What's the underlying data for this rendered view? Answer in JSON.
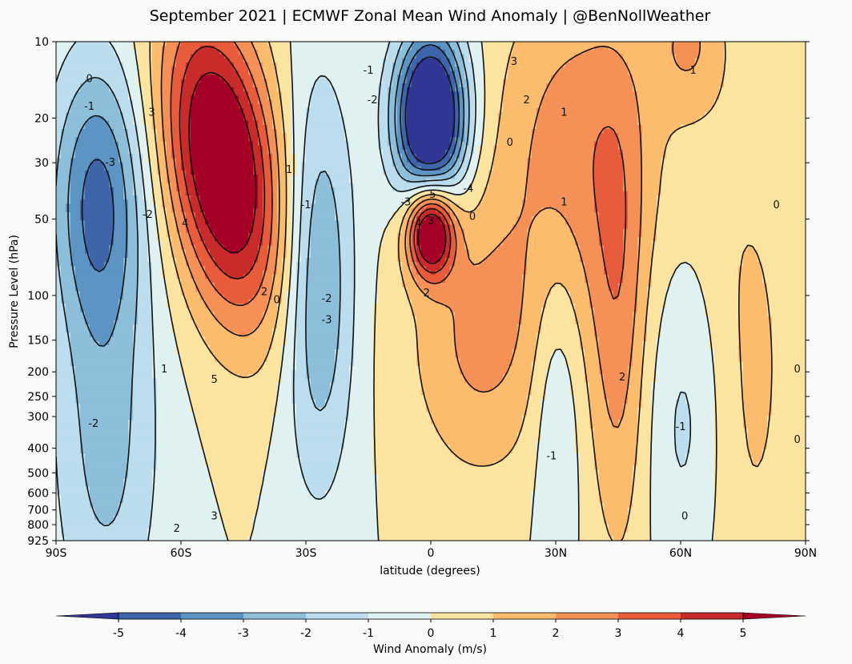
{
  "chart_data": {
    "type": "heatmap",
    "subtype": "filled-contour",
    "title": "September 2021 | ECMWF Zonal Mean Wind Anomaly | @BenNollWeather",
    "xlabel": "latitude (degrees)",
    "ylabel": "Pressure Level (hPa)",
    "xlim": [
      -90,
      90
    ],
    "ylim": [
      925,
      10
    ],
    "yscale": "log",
    "xticks": [
      {
        "value": -90,
        "label": "90S"
      },
      {
        "value": -60,
        "label": "60S"
      },
      {
        "value": -30,
        "label": "30S"
      },
      {
        "value": 0,
        "label": "0"
      },
      {
        "value": 30,
        "label": "30N"
      },
      {
        "value": 60,
        "label": "60N"
      },
      {
        "value": 90,
        "label": "90N"
      }
    ],
    "yticks": [
      {
        "value": 10,
        "label": "10"
      },
      {
        "value": 20,
        "label": "20"
      },
      {
        "value": 30,
        "label": "30"
      },
      {
        "value": 50,
        "label": "50"
      },
      {
        "value": 100,
        "label": "100"
      },
      {
        "value": 150,
        "label": "150"
      },
      {
        "value": 200,
        "label": "200"
      },
      {
        "value": 250,
        "label": "250"
      },
      {
        "value": 300,
        "label": "300"
      },
      {
        "value": 400,
        "label": "400"
      },
      {
        "value": 500,
        "label": "500"
      },
      {
        "value": 600,
        "label": "600"
      },
      {
        "value": 700,
        "label": "700"
      },
      {
        "value": 800,
        "label": "800"
      },
      {
        "value": 925,
        "label": "925"
      }
    ],
    "colorbar": {
      "label": "Wind Anomaly (m/s)",
      "levels": [
        -6,
        -5,
        -4,
        -3,
        -2,
        -1,
        0,
        1,
        2,
        3,
        4,
        5,
        6
      ],
      "tick_values": [
        -5,
        -4,
        -3,
        -2,
        -1,
        0,
        1,
        2,
        3,
        4,
        5
      ],
      "tick_labels": [
        "-5",
        "-4",
        "-3",
        "-2",
        "-1",
        "0",
        "1",
        "2",
        "3",
        "4",
        "5"
      ],
      "colors": [
        "#313695",
        "#3e64a9",
        "#5c95c4",
        "#8dbeda",
        "#bbdded",
        "#dff1f1",
        "#fbe4a0",
        "#fbbd6d",
        "#f59057",
        "#e85b3b",
        "#c92a2a",
        "#a50026"
      ]
    },
    "features": [
      {
        "name": "sh-jet-positive-anomaly",
        "lat": -50,
        "plev": 30,
        "value": 7,
        "sigma_lat": 9.5,
        "sigma_logp": 1.0,
        "tilt": 3.5
      },
      {
        "name": "sh-polar-negative",
        "lat": -80,
        "plev": 40,
        "value": -4,
        "sigma_lat": 8,
        "sigma_logp": 0.9,
        "tilt": 0
      },
      {
        "name": "sh-polar-low-level-negative",
        "lat": -78,
        "plev": 400,
        "value": -2.3,
        "sigma_lat": 9,
        "sigma_logp": 1.3,
        "tilt": 0
      },
      {
        "name": "sh-subtropical-negative",
        "lat": -27,
        "plev": 90,
        "value": -3.2,
        "sigma_lat": 6,
        "sigma_logp": 1.3,
        "tilt": 0
      },
      {
        "name": "equatorial-strat-easterly",
        "lat": 0,
        "plev": 20,
        "value": -8.5,
        "sigma_lat": 6,
        "sigma_logp": 0.55,
        "tilt": 0
      },
      {
        "name": "equatorial-westerly-core",
        "lat": 0,
        "plev": 55,
        "value": 7.5,
        "sigma_lat": 4,
        "sigma_logp": 0.3,
        "tilt": 0
      },
      {
        "name": "nh-subtropical-positive",
        "lat": 12,
        "plev": 150,
        "value": 2.2,
        "sigma_lat": 12,
        "sigma_logp": 0.9,
        "tilt": 0
      },
      {
        "name": "nh-upper-positive",
        "lat": 35,
        "plev": 25,
        "value": 2.5,
        "sigma_lat": 14,
        "sigma_logp": 1.1,
        "tilt": 0
      },
      {
        "name": "nh-midlat-positive-column",
        "lat": 45,
        "plev": 150,
        "value": 2.2,
        "sigma_lat": 5,
        "sigma_logp": 1.5,
        "tilt": 0
      },
      {
        "name": "nh-subpolar-negative",
        "lat": 62,
        "plev": 300,
        "value": -1.6,
        "sigma_lat": 7,
        "sigma_logp": 1.1,
        "tilt": 0
      },
      {
        "name": "nh-tropical-negative",
        "lat": 30,
        "plev": 250,
        "value": -1.4,
        "sigma_lat": 4,
        "sigma_logp": 1.0,
        "tilt": 0
      },
      {
        "name": "nh-polar-positive",
        "lat": 75,
        "plev": 200,
        "value": 1.3,
        "sigma_lat": 10,
        "sigma_logp": 1.8,
        "tilt": 0
      },
      {
        "name": "nh-strat-peak",
        "lat": 62,
        "plev": 10,
        "value": 1.8,
        "sigma_lat": 6,
        "sigma_logp": 0.45,
        "tilt": 0
      }
    ],
    "contour_labels": [
      {
        "lat": -15,
        "plev": 13,
        "text": "-1"
      },
      {
        "lat": -14,
        "plev": 17,
        "text": "-2"
      },
      {
        "lat": 20,
        "plev": 12,
        "text": "3"
      },
      {
        "lat": 63,
        "plev": 13,
        "text": "1"
      },
      {
        "lat": -82,
        "plev": 14,
        "text": "0"
      },
      {
        "lat": -82,
        "plev": 18,
        "text": "-1"
      },
      {
        "lat": -77,
        "plev": 30,
        "text": "-3"
      },
      {
        "lat": -67,
        "plev": 19,
        "text": "3"
      },
      {
        "lat": 23,
        "plev": 17,
        "text": "2"
      },
      {
        "lat": 32,
        "plev": 19,
        "text": "1"
      },
      {
        "lat": 19,
        "plev": 25,
        "text": "0"
      },
      {
        "lat": -68,
        "plev": 48,
        "text": "-2"
      },
      {
        "lat": -59,
        "plev": 52,
        "text": "4"
      },
      {
        "lat": -34,
        "plev": 32,
        "text": "1"
      },
      {
        "lat": -30,
        "plev": 44,
        "text": "-1"
      },
      {
        "lat": -6,
        "plev": 43,
        "text": "-3"
      },
      {
        "lat": 0,
        "plev": 40,
        "text": "-5"
      },
      {
        "lat": 9,
        "plev": 38,
        "text": "-4"
      },
      {
        "lat": -3,
        "plev": 52,
        "text": "4"
      },
      {
        "lat": 0,
        "plev": 51,
        "text": "3"
      },
      {
        "lat": 10,
        "plev": 49,
        "text": "0"
      },
      {
        "lat": 32,
        "plev": 43,
        "text": "1"
      },
      {
        "lat": 83,
        "plev": 44,
        "text": "0"
      },
      {
        "lat": -40,
        "plev": 97,
        "text": "2"
      },
      {
        "lat": -37,
        "plev": 104,
        "text": "0"
      },
      {
        "lat": -25,
        "plev": 103,
        "text": "-2"
      },
      {
        "lat": -25,
        "plev": 125,
        "text": "-3"
      },
      {
        "lat": -1,
        "plev": 98,
        "text": "2"
      },
      {
        "lat": -64,
        "plev": 195,
        "text": "1"
      },
      {
        "lat": -52,
        "plev": 215,
        "text": "5"
      },
      {
        "lat": 46,
        "plev": 210,
        "text": "2"
      },
      {
        "lat": 88,
        "plev": 195,
        "text": "0"
      },
      {
        "lat": -81,
        "plev": 320,
        "text": "-2"
      },
      {
        "lat": 60,
        "plev": 330,
        "text": "-1"
      },
      {
        "lat": 29,
        "plev": 430,
        "text": "-1"
      },
      {
        "lat": 88,
        "plev": 370,
        "text": "0"
      },
      {
        "lat": -52,
        "plev": 740,
        "text": "3"
      },
      {
        "lat": -61,
        "plev": 830,
        "text": "2"
      },
      {
        "lat": 61,
        "plev": 740,
        "text": "0"
      }
    ]
  }
}
